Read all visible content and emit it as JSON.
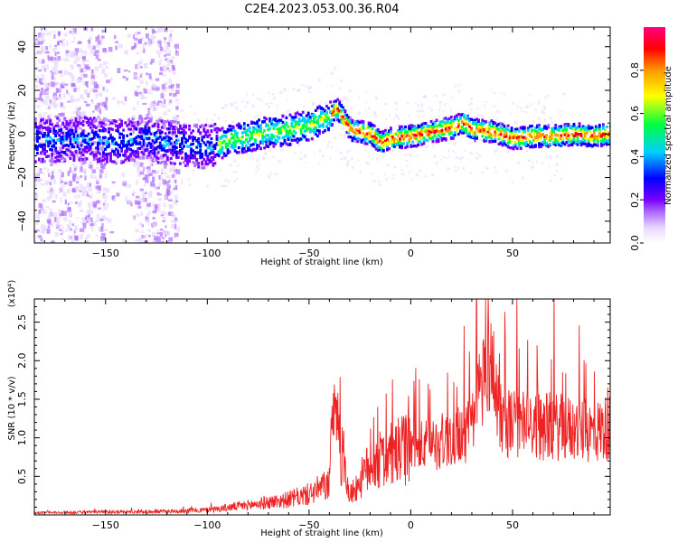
{
  "figure_title": "C2E4.2023.053.00.36.R04",
  "chart_data": [
    {
      "type": "heatmap",
      "title": "C2E4.2023.053.00.36.R04",
      "xlabel": "Height of straight line (km)",
      "ylabel": "Frequency (Hz)",
      "xlim": [
        -185,
        98
      ],
      "ylim": [
        -50,
        49
      ],
      "x_ticks": [
        -150,
        -100,
        -50,
        0,
        50
      ],
      "y_ticks": [
        -40,
        -20,
        0,
        20,
        40
      ],
      "colorbar": {
        "label": "Normalized spectral amplitude",
        "range": [
          0,
          1
        ],
        "ticks": [
          "0.0",
          "0.2",
          "0.4",
          "0.6",
          "0.8"
        ],
        "colormap": [
          "#ffffff",
          "#e8d8ff",
          "#b070ff",
          "#7a00ff",
          "#0000ff",
          "#00d0ff",
          "#00ff40",
          "#ffff00",
          "#ff9900",
          "#ff0000",
          "#ff0080"
        ]
      },
      "center_frequency_track": {
        "x": [
          -180,
          -160,
          -150,
          -140,
          -130,
          -120,
          -110,
          -100,
          -90,
          -80,
          -70,
          -60,
          -50,
          -40,
          -37,
          -30,
          -20,
          -15,
          -10,
          0,
          10,
          20,
          25,
          30,
          40,
          50,
          60,
          70,
          80,
          90,
          98
        ],
        "y": [
          -3,
          -2,
          -4,
          -3,
          -2,
          -4,
          -5,
          -6,
          -3,
          -1,
          1,
          2,
          4,
          8,
          12,
          2,
          0,
          -4,
          -2,
          -1,
          1,
          3,
          5,
          2,
          1,
          -2,
          -1,
          -1,
          0,
          -1,
          0
        ]
      },
      "grid": false
    },
    {
      "type": "line",
      "xlabel": "Height of straight line (km)",
      "ylabel": "SNR (10 * v/v)",
      "y_multiplier": "(x10⁴)",
      "xlim": [
        -185,
        98
      ],
      "ylim": [
        0,
        2.8
      ],
      "x_ticks": [
        -150,
        -100,
        -50,
        0,
        50
      ],
      "y_ticks": [
        "0.5",
        "1.0",
        "1.5",
        "2.0",
        "2.5"
      ],
      "color": "#ee2222",
      "series_envelope": {
        "x": [
          -185,
          -150,
          -120,
          -100,
          -80,
          -60,
          -50,
          -40,
          -38,
          -30,
          -25,
          -20,
          -10,
          0,
          10,
          20,
          30,
          38,
          45,
          50,
          60,
          70,
          80,
          90,
          98
        ],
        "y": [
          0.03,
          0.04,
          0.05,
          0.07,
          0.14,
          0.22,
          0.3,
          0.45,
          1.65,
          0.3,
          0.55,
          0.8,
          0.95,
          1.1,
          1.2,
          1.3,
          1.45,
          2.8,
          1.6,
          1.55,
          1.5,
          1.5,
          1.45,
          1.4,
          1.5
        ]
      },
      "grid": false
    }
  ]
}
